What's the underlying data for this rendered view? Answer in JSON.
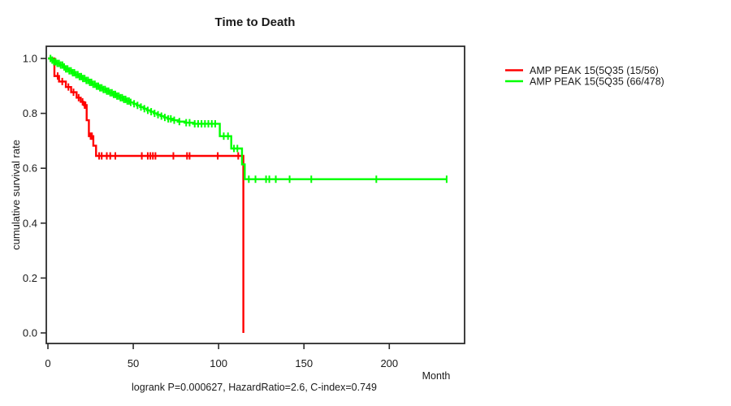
{
  "chart_data": {
    "type": "line",
    "subtype": "kaplan-meier-step",
    "title": "Time to Death",
    "xlabel": "Month",
    "ylabel": "cumulative survival rate",
    "footer": "logrank P=0.000627, HazardRatio=2.6, C-index=0.749",
    "stats": {
      "logrank_p": "0.000627",
      "hazard_ratio": "2.6",
      "c_index": "0.749"
    },
    "xlim": [
      0,
      244
    ],
    "ylim": [
      0.0,
      1.0
    ],
    "x_ticks": [
      0,
      50,
      100,
      150,
      200
    ],
    "y_ticks": [
      "0.0",
      "0.2",
      "0.4",
      "0.6",
      "0.8",
      "1.0"
    ],
    "grid": false,
    "legend_position": "right-outside",
    "series": [
      {
        "name": "AMP PEAK 15(5Q35 (15/56)",
        "events_over_n": "15/56",
        "color": "#ff0000",
        "steps": [
          [
            0,
            1.0
          ],
          [
            3.8,
            0.936
          ],
          [
            6.5,
            0.916
          ],
          [
            10.5,
            0.896
          ],
          [
            13.6,
            0.877
          ],
          [
            16.8,
            0.857
          ],
          [
            19.2,
            0.842
          ],
          [
            21,
            0.83
          ],
          [
            22.7,
            0.775
          ],
          [
            24,
            0.717
          ],
          [
            26.6,
            0.682
          ],
          [
            28.2,
            0.645
          ],
          [
            114.5,
            0.0
          ]
        ],
        "censor_months": [
          5.7,
          8.4,
          12,
          15,
          18,
          20.3,
          21.5,
          22,
          25,
          25.8,
          30,
          31.5,
          34.5,
          36.5,
          39.5,
          55,
          58.5,
          60,
          61.5,
          63,
          73.5,
          81.5,
          83,
          99.5,
          111.5
        ]
      },
      {
        "name": "AMP PEAK 15(5Q35 (66/478)",
        "events_over_n": "66/478",
        "color": "#00ff00",
        "steps": [
          [
            0,
            1.0
          ],
          [
            2,
            0.994
          ],
          [
            3,
            0.988
          ],
          [
            5,
            0.982
          ],
          [
            7,
            0.976
          ],
          [
            9,
            0.969
          ],
          [
            10,
            0.962
          ],
          [
            12,
            0.955
          ],
          [
            14,
            0.948
          ],
          [
            16,
            0.941
          ],
          [
            18,
            0.934
          ],
          [
            20,
            0.927
          ],
          [
            22,
            0.92
          ],
          [
            24,
            0.913
          ],
          [
            26,
            0.906
          ],
          [
            28,
            0.899
          ],
          [
            30,
            0.893
          ],
          [
            32,
            0.887
          ],
          [
            34,
            0.881
          ],
          [
            36,
            0.875
          ],
          [
            38,
            0.869
          ],
          [
            40,
            0.863
          ],
          [
            42,
            0.857
          ],
          [
            44,
            0.851
          ],
          [
            46,
            0.845
          ],
          [
            48,
            0.84
          ],
          [
            50,
            0.835
          ],
          [
            52,
            0.829
          ],
          [
            54,
            0.823
          ],
          [
            56,
            0.817
          ],
          [
            58,
            0.811
          ],
          [
            60,
            0.806
          ],
          [
            62,
            0.8
          ],
          [
            64,
            0.795
          ],
          [
            66,
            0.79
          ],
          [
            68,
            0.785
          ],
          [
            70,
            0.78
          ],
          [
            73,
            0.775
          ],
          [
            76,
            0.77
          ],
          [
            80,
            0.766
          ],
          [
            85,
            0.762
          ],
          [
            100.7,
            0.717
          ],
          [
            107.4,
            0.672
          ],
          [
            113.7,
            0.614
          ],
          [
            115.3,
            0.56
          ],
          [
            233.6,
            0.56
          ]
        ],
        "censor_months": [
          1.5,
          2.5,
          3.5,
          4.5,
          5.5,
          6.5,
          7.5,
          8.5,
          9.5,
          10.5,
          11.5,
          12.5,
          13.5,
          14.5,
          15.5,
          16.5,
          17.5,
          18.5,
          19.5,
          20.5,
          21.5,
          22.5,
          23.5,
          24.5,
          25.5,
          26.5,
          27.5,
          28.5,
          29.5,
          30.5,
          31.5,
          32.5,
          33.5,
          34.5,
          35.5,
          36.5,
          37.5,
          38.5,
          39.5,
          40.5,
          41.5,
          42.5,
          43.5,
          44.5,
          45.5,
          46.5,
          47.5,
          48.5,
          50.5,
          52.5,
          54.5,
          56.5,
          58.5,
          60.5,
          62.5,
          64.5,
          66.5,
          68.5,
          70.5,
          72,
          74,
          77,
          81,
          83,
          86,
          88,
          90,
          92,
          94,
          96,
          98,
          103,
          105.5,
          109,
          111,
          117.7,
          121.6,
          127.8,
          129.7,
          133.5,
          141.6,
          154.3,
          192.4,
          233.6
        ]
      }
    ],
    "colors": {
      "axis": "#2b2b2b",
      "background": "#ffffff"
    }
  }
}
